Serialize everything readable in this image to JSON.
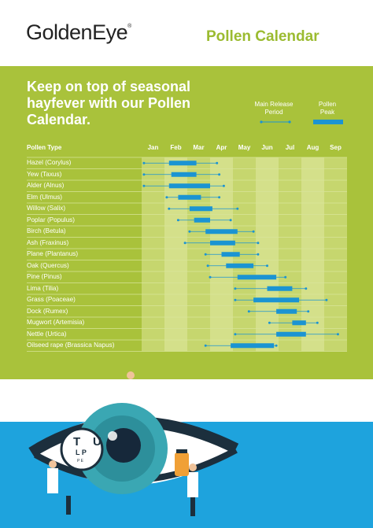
{
  "header": {
    "logo_text": "GoldenEye",
    "logo_mark": "®",
    "title": "Pollen Calendar"
  },
  "intro": {
    "headline": "Keep on top of seasonal hayfever with our Pollen Calendar."
  },
  "legend": {
    "release": "Main Release Period",
    "peak": "Pollen Peak"
  },
  "table": {
    "type_header": "Pollen Type",
    "months": [
      "Jan",
      "Feb",
      "Mar",
      "Apr",
      "May",
      "Jun",
      "Jul",
      "Aug",
      "Sep"
    ],
    "rows": [
      {
        "name": "Hazel (Corylus)",
        "release": [
          0.1,
          3.3
        ],
        "peak": [
          1.2,
          2.4
        ]
      },
      {
        "name": "Yew (Taxus)",
        "release": [
          0.1,
          3.4
        ],
        "peak": [
          1.3,
          2.4
        ]
      },
      {
        "name": "Alder (Alnus)",
        "release": [
          0.1,
          3.6
        ],
        "peak": [
          1.2,
          3.0
        ]
      },
      {
        "name": "Elm (Ulmus)",
        "release": [
          1.1,
          3.4
        ],
        "peak": [
          1.6,
          2.6
        ]
      },
      {
        "name": "Willow (Salix)",
        "release": [
          1.2,
          4.2
        ],
        "peak": [
          2.1,
          3.1
        ]
      },
      {
        "name": "Poplar (Populus)",
        "release": [
          1.6,
          3.9
        ],
        "peak": [
          2.3,
          3.0
        ]
      },
      {
        "name": "Birch (Betula)",
        "release": [
          2.1,
          4.9
        ],
        "peak": [
          2.8,
          4.2
        ]
      },
      {
        "name": "Ash (Fraxinus)",
        "release": [
          1.9,
          5.1
        ],
        "peak": [
          3.0,
          4.1
        ]
      },
      {
        "name": "Plane (Plantanus)",
        "release": [
          2.8,
          5.1
        ],
        "peak": [
          3.5,
          4.3
        ]
      },
      {
        "name": "Oak (Quercus)",
        "release": [
          2.9,
          5.5
        ],
        "peak": [
          3.7,
          4.9
        ]
      },
      {
        "name": "Pine (Pinus)",
        "release": [
          3.0,
          6.3
        ],
        "peak": [
          4.2,
          5.9
        ]
      },
      {
        "name": "Lima (Tilia)",
        "release": [
          4.1,
          7.2
        ],
        "peak": [
          5.5,
          6.6
        ]
      },
      {
        "name": "Grass (Poaceae)",
        "release": [
          4.1,
          8.1
        ],
        "peak": [
          4.9,
          6.9
        ]
      },
      {
        "name": "Dock (Rumex)",
        "release": [
          4.7,
          7.3
        ],
        "peak": [
          5.9,
          6.8
        ]
      },
      {
        "name": "Mugwort (Artemisia)",
        "release": [
          5.6,
          7.7
        ],
        "peak": [
          6.6,
          7.2
        ]
      },
      {
        "name": "Nettle (Urtica)",
        "release": [
          4.1,
          8.6
        ],
        "peak": [
          5.9,
          7.2
        ]
      },
      {
        "name": "Oilseed rape (Brassica Napus)",
        "release": [
          2.8,
          5.9
        ],
        "peak": [
          3.9,
          5.8
        ]
      }
    ]
  },
  "chart_labels": {
    "eye_chart_row1": "T",
    "eye_chart_row1b": "U",
    "eye_chart_row2": "L P",
    "eye_chart_row3": "P E"
  },
  "colors": {
    "green": "#a9c23b",
    "bar": "#1b94d2",
    "column_light": "#c6d66e",
    "blue": "#1ea3dd"
  }
}
